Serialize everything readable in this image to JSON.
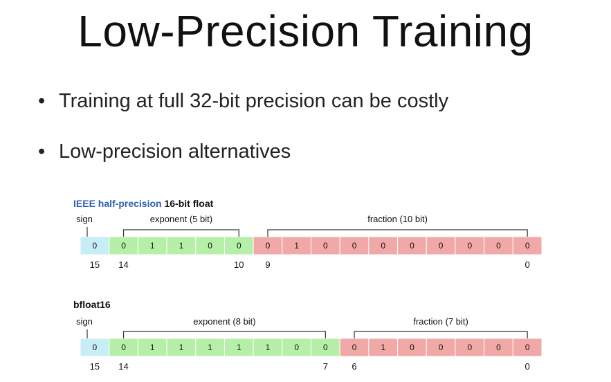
{
  "slide": {
    "title": "Low-Precision Training",
    "bullets": [
      "Training at full 32-bit precision can be costly",
      "Low-precision alternatives"
    ]
  },
  "formats": [
    {
      "id": "fp16",
      "name_highlight": "IEEE half-precision",
      "name_rest": " 16-bit float",
      "sign_label": "sign",
      "exponent_label": "exponent (5 bit)",
      "fraction_label": "fraction (10 bit)",
      "sign_bits": [
        "0"
      ],
      "exponent_bits": [
        "0",
        "1",
        "1",
        "0",
        "0"
      ],
      "fraction_bits": [
        "0",
        "1",
        "0",
        "0",
        "0",
        "0",
        "0",
        "0",
        "0",
        "0"
      ],
      "index_labels": [
        "15",
        "14",
        "10",
        "9",
        "0"
      ]
    },
    {
      "id": "bf16",
      "name_highlight": "",
      "name_rest": "bfloat16",
      "sign_label": "sign",
      "exponent_label": "exponent (8 bit)",
      "fraction_label": "fraction (7 bit)",
      "sign_bits": [
        "0"
      ],
      "exponent_bits": [
        "0",
        "1",
        "1",
        "1",
        "1",
        "1",
        "0",
        "0"
      ],
      "fraction_bits": [
        "0",
        "1",
        "0",
        "0",
        "0",
        "0",
        "0"
      ],
      "index_labels": [
        "15",
        "14",
        "7",
        "6",
        "0"
      ]
    }
  ],
  "colors": {
    "highlight_text": "#2f5fb3",
    "sign_fill": "#c7eef6",
    "exponent_fill": "#b6f0a8",
    "fraction_fill": "#f1a9a8",
    "cell_border": "#ffffff",
    "bracket": "#333333"
  }
}
